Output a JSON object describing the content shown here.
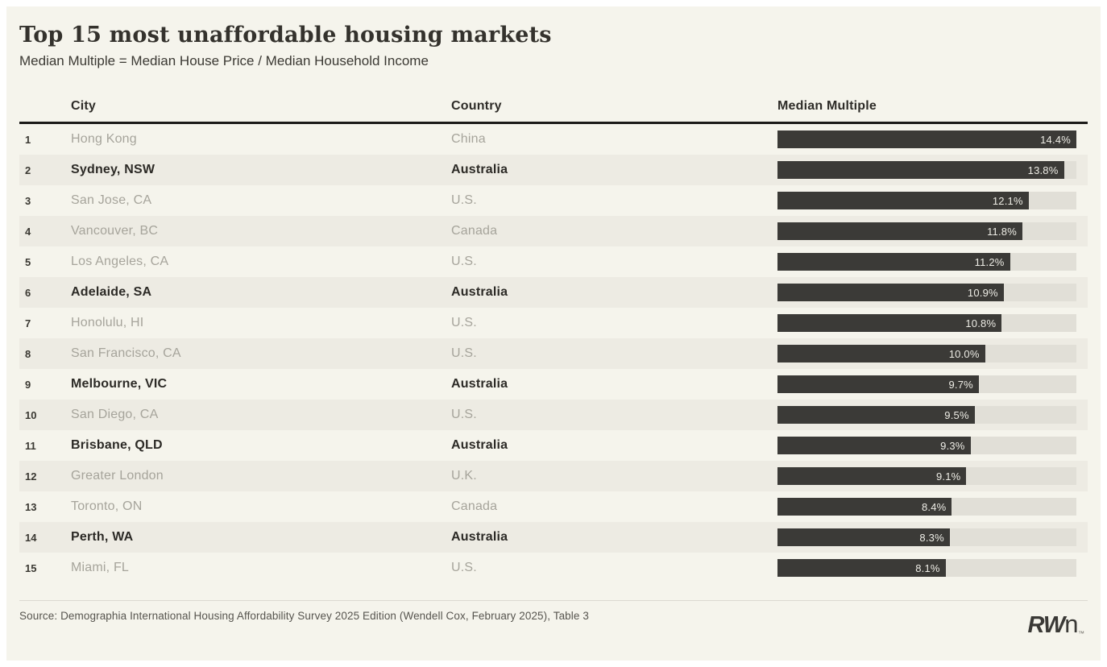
{
  "header": {
    "title": "Top 15 most unaffordable housing markets",
    "subtitle": "Median Multiple = Median House Price / Median Household Income"
  },
  "table": {
    "columns": {
      "rank": "",
      "city": "City",
      "country": "Country",
      "value": "Median Multiple"
    },
    "rows": [
      {
        "rank": "1",
        "city": "Hong Kong",
        "country": "China",
        "value": 14.4,
        "label": "14.4%",
        "highlight": false
      },
      {
        "rank": "2",
        "city": "Sydney, NSW",
        "country": "Australia",
        "value": 13.8,
        "label": "13.8%",
        "highlight": true
      },
      {
        "rank": "3",
        "city": "San Jose, CA",
        "country": "U.S.",
        "value": 12.1,
        "label": "12.1%",
        "highlight": false
      },
      {
        "rank": "4",
        "city": "Vancouver, BC",
        "country": "Canada",
        "value": 11.8,
        "label": "11.8%",
        "highlight": false
      },
      {
        "rank": "5",
        "city": "Los Angeles, CA",
        "country": "U.S.",
        "value": 11.2,
        "label": "11.2%",
        "highlight": false
      },
      {
        "rank": "6",
        "city": "Adelaide, SA",
        "country": "Australia",
        "value": 10.9,
        "label": "10.9%",
        "highlight": true
      },
      {
        "rank": "7",
        "city": "Honolulu, HI",
        "country": "U.S.",
        "value": 10.8,
        "label": "10.8%",
        "highlight": false
      },
      {
        "rank": "8",
        "city": "San Francisco, CA",
        "country": "U.S.",
        "value": 10.0,
        "label": "10.0%",
        "highlight": false
      },
      {
        "rank": "9",
        "city": "Melbourne, VIC",
        "country": "Australia",
        "value": 9.7,
        "label": "9.7%",
        "highlight": true
      },
      {
        "rank": "10",
        "city": "San Diego, CA",
        "country": "U.S.",
        "value": 9.5,
        "label": "9.5%",
        "highlight": false
      },
      {
        "rank": "11",
        "city": "Brisbane, QLD",
        "country": "Australia",
        "value": 9.3,
        "label": "9.3%",
        "highlight": true
      },
      {
        "rank": "12",
        "city": "Greater London",
        "country": "U.K.",
        "value": 9.1,
        "label": "9.1%",
        "highlight": false
      },
      {
        "rank": "13",
        "city": "Toronto, ON",
        "country": "Canada",
        "value": 8.4,
        "label": "8.4%",
        "highlight": false
      },
      {
        "rank": "14",
        "city": "Perth, WA",
        "country": "Australia",
        "value": 8.3,
        "label": "8.3%",
        "highlight": true
      },
      {
        "rank": "15",
        "city": "Miami, FL",
        "country": "U.S.",
        "value": 8.1,
        "label": "8.1%",
        "highlight": false
      }
    ]
  },
  "footer": {
    "source": "Source: Demographia International Housing Affordability Survey 2025 Edition (Wendell Cox, February 2025), Table 3",
    "logo_rw": "RW",
    "logo_n": "n",
    "logo_tm": "™"
  },
  "colors": {
    "card_background": "#f5f4ec",
    "row_alternate": "#edebe3",
    "bar_fill": "#3b3a37",
    "bar_track": "#e1dfd7",
    "header_rule": "#1c1b19",
    "muted_text": "#a6a49b",
    "dark_text": "#2c2a26"
  },
  "chart_data": {
    "type": "bar",
    "orientation": "horizontal",
    "title": "Top 15 most unaffordable housing markets",
    "subtitle": "Median Multiple = Median House Price / Median Household Income",
    "categories": [
      "Hong Kong",
      "Sydney, NSW",
      "San Jose, CA",
      "Vancouver, BC",
      "Los Angeles, CA",
      "Adelaide, SA",
      "Honolulu, HI",
      "San Francisco, CA",
      "Melbourne, VIC",
      "San Diego, CA",
      "Brisbane, QLD",
      "Greater London",
      "Toronto, ON",
      "Perth, WA",
      "Miami, FL"
    ],
    "group_labels": [
      "China",
      "Australia",
      "U.S.",
      "Canada",
      "U.S.",
      "Australia",
      "U.S.",
      "U.S.",
      "Australia",
      "U.S.",
      "Australia",
      "U.K.",
      "Canada",
      "Australia",
      "U.S."
    ],
    "values": [
      14.4,
      13.8,
      12.1,
      11.8,
      11.2,
      10.9,
      10.8,
      10.0,
      9.7,
      9.5,
      9.3,
      9.1,
      8.4,
      8.3,
      8.1
    ],
    "value_labels": [
      "14.4%",
      "13.8%",
      "12.1%",
      "11.8%",
      "11.2%",
      "10.9%",
      "10.8%",
      "10.0%",
      "9.7%",
      "9.5%",
      "9.3%",
      "9.1%",
      "8.4%",
      "8.3%",
      "8.1%"
    ],
    "xlabel": "Median Multiple",
    "ylabel": "City",
    "xlim": [
      0,
      14.4
    ],
    "grid": false,
    "legend": false,
    "highlighted_categories": [
      "Sydney, NSW",
      "Adelaide, SA",
      "Melbourne, VIC",
      "Brisbane, QLD",
      "Perth, WA"
    ],
    "source": "Source: Demographia International Housing Affordability Survey 2025 Edition (Wendell Cox, February 2025), Table 3"
  }
}
